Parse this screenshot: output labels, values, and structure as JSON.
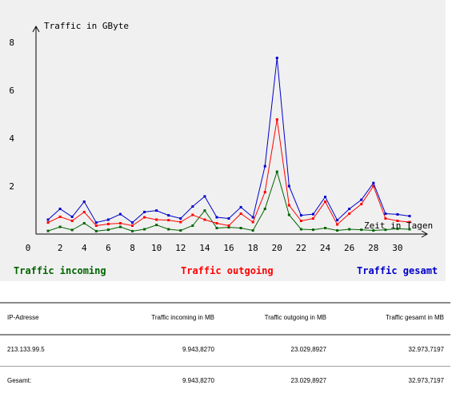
{
  "chart_data": {
    "type": "line",
    "ylabel": "Traffic in GByte",
    "xlabel": "Zeit in Tagen",
    "xlim": [
      0,
      31
    ],
    "ylim": [
      0,
      8
    ],
    "x_ticks": [
      0,
      2,
      4,
      6,
      8,
      10,
      12,
      14,
      16,
      18,
      20,
      22,
      24,
      26,
      28,
      30
    ],
    "y_ticks": [
      2,
      4,
      6,
      8
    ],
    "x": [
      1,
      2,
      3,
      4,
      5,
      6,
      7,
      8,
      9,
      10,
      11,
      12,
      13,
      14,
      15,
      16,
      17,
      18,
      19,
      20,
      21,
      22,
      23,
      24,
      25,
      26,
      27,
      28,
      29,
      30,
      31
    ],
    "series": [
      {
        "name": "Traffic incoming",
        "color": "#006400",
        "values": [
          0.13,
          0.3,
          0.17,
          0.45,
          0.12,
          0.18,
          0.3,
          0.12,
          0.2,
          0.38,
          0.2,
          0.15,
          0.35,
          0.98,
          0.25,
          0.28,
          0.25,
          0.15,
          1.05,
          2.6,
          0.8,
          0.2,
          0.18,
          0.25,
          0.15,
          0.2,
          0.18,
          0.15,
          0.18,
          0.22,
          0.2
        ]
      },
      {
        "name": "Traffic outgoing",
        "color": "#ff0000",
        "values": [
          0.48,
          0.72,
          0.55,
          0.92,
          0.35,
          0.42,
          0.45,
          0.35,
          0.7,
          0.6,
          0.58,
          0.5,
          0.8,
          0.6,
          0.45,
          0.35,
          0.85,
          0.5,
          1.75,
          4.78,
          1.2,
          0.55,
          0.65,
          1.35,
          0.4,
          0.85,
          1.25,
          2.0,
          0.65,
          0.55,
          0.5
        ]
      },
      {
        "name": "Traffic gesamt",
        "color": "#0000cc",
        "values": [
          0.6,
          1.05,
          0.72,
          1.35,
          0.48,
          0.6,
          0.83,
          0.48,
          0.92,
          0.98,
          0.78,
          0.65,
          1.15,
          1.57,
          0.7,
          0.65,
          1.12,
          0.7,
          2.83,
          7.35,
          2.0,
          0.78,
          0.83,
          1.55,
          0.58,
          1.05,
          1.43,
          2.13,
          0.85,
          0.82,
          0.75
        ]
      }
    ],
    "legend_position": "bottom",
    "grid": false
  },
  "legend": {
    "incoming": "Traffic incoming",
    "outgoing": "Traffic outgoing",
    "gesamt": "Traffic gesamt"
  },
  "table": {
    "headers": [
      "IP-Adresse",
      "Traffic incoming in MB",
      "Traffic outgoing in MB",
      "Traffic gesamt in MB"
    ],
    "rows": [
      [
        "213.133.99.5",
        "9.943,8270",
        "23.029,8927",
        "32.973,7197"
      ],
      [
        "Gesamt:",
        "9.943,8270",
        "23.029,8927",
        "32.973,7197"
      ]
    ]
  }
}
